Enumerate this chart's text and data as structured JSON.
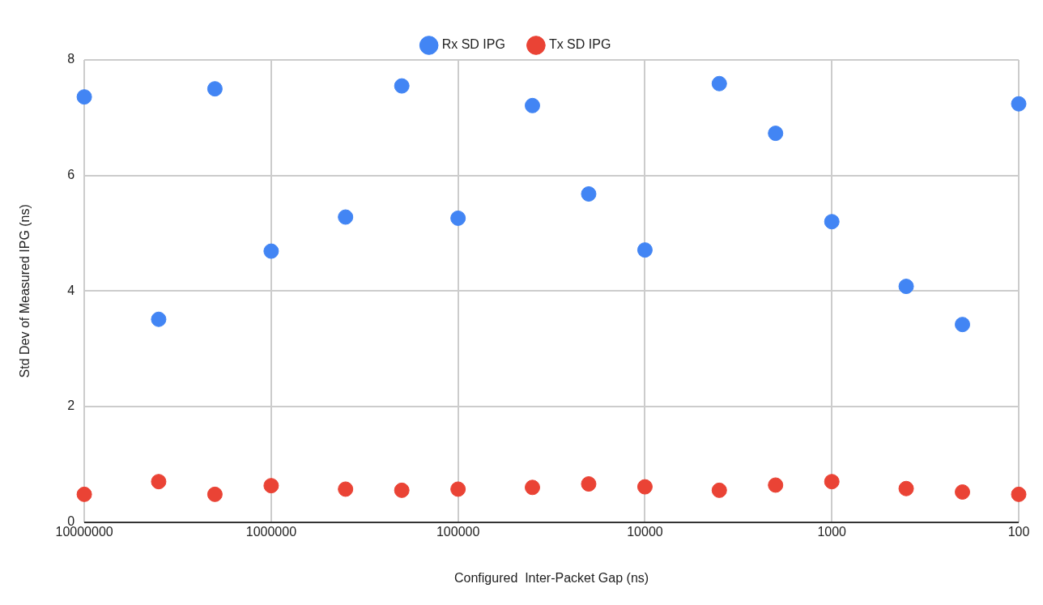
{
  "chart_data": {
    "type": "scatter",
    "xlabel": "Configured  Inter-Packet Gap (ns)",
    "ylabel": "Std Dev of Measured IPG (ns)",
    "x": [
      10000000,
      4000000,
      2000000,
      1000000,
      400000,
      200000,
      100000,
      40000,
      20000,
      10000,
      4000,
      2000,
      1000,
      400,
      200,
      100
    ],
    "series": [
      {
        "name": "Rx SD IPG",
        "color": "#4285f4",
        "values": [
          7.36,
          3.51,
          7.5,
          4.69,
          5.28,
          7.55,
          5.26,
          7.21,
          5.68,
          4.71,
          7.59,
          6.73,
          5.2,
          4.08,
          3.42,
          7.24
        ]
      },
      {
        "name": "Tx SD IPG",
        "color": "#ea4335",
        "values": [
          0.48,
          0.7,
          0.48,
          0.63,
          0.57,
          0.55,
          0.57,
          0.6,
          0.66,
          0.61,
          0.55,
          0.64,
          0.7,
          0.58,
          0.52,
          0.48
        ]
      }
    ],
    "xlim": [
      10000000,
      100
    ],
    "xticks": [
      10000000,
      1000000,
      100000,
      10000,
      1000,
      100
    ],
    "ylim": [
      0,
      8
    ],
    "yticks": [
      0,
      2,
      4,
      6,
      8
    ],
    "log": "x",
    "grid": true,
    "legend": "top",
    "marker": "circle"
  }
}
